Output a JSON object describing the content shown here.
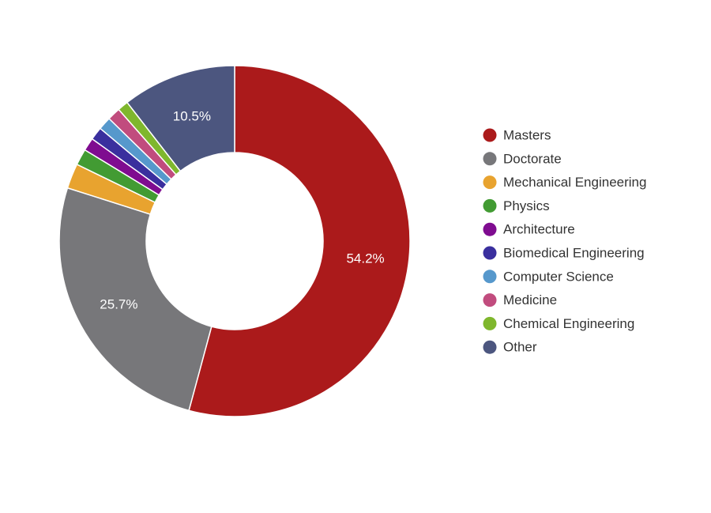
{
  "chart_data": {
    "type": "pie",
    "variant": "donut",
    "legend_position": "right",
    "title": "",
    "slices": [
      {
        "label": "Masters",
        "value": 54.2,
        "color": "#ab1a1b",
        "data_label": "54.2%"
      },
      {
        "label": "Doctorate",
        "value": 25.7,
        "color": "#77777a",
        "data_label": "25.7%"
      },
      {
        "label": "Mechanical Engineering",
        "value": 2.3,
        "color": "#e8a32f",
        "data_label": ""
      },
      {
        "label": "Physics",
        "value": 1.5,
        "color": "#429b33",
        "data_label": ""
      },
      {
        "label": "Architecture",
        "value": 1.2,
        "color": "#7f0c90",
        "data_label": ""
      },
      {
        "label": "Biomedical Engineering",
        "value": 1.2,
        "color": "#3a2f9e",
        "data_label": ""
      },
      {
        "label": "Computer Science",
        "value": 1.2,
        "color": "#5698cc",
        "data_label": ""
      },
      {
        "label": "Medicine",
        "value": 1.2,
        "color": "#c14c7e",
        "data_label": ""
      },
      {
        "label": "Chemical Engineering",
        "value": 1.0,
        "color": "#7fb72d",
        "data_label": ""
      },
      {
        "label": "Other",
        "value": 10.5,
        "color": "#4c567f",
        "data_label": "10.5%"
      }
    ]
  }
}
